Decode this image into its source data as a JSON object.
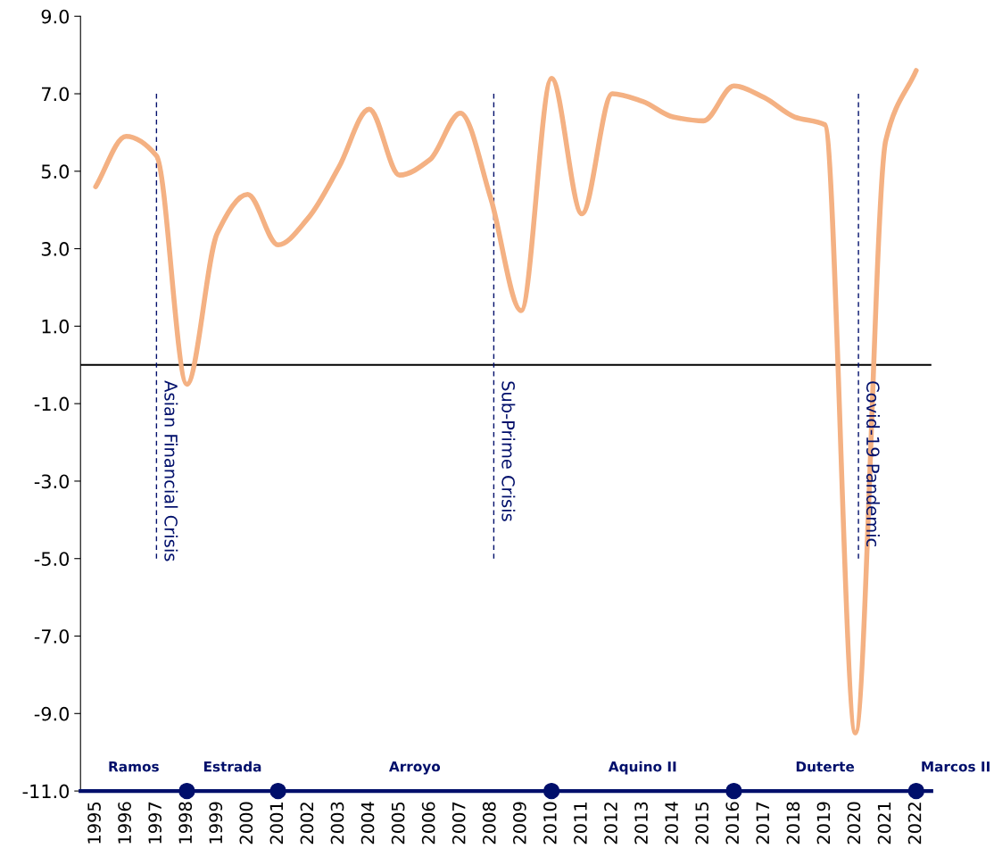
{
  "chart_data": {
    "type": "line",
    "x": [
      1995,
      1996,
      1997,
      1998,
      1999,
      2000,
      2001,
      2002,
      2003,
      2004,
      2005,
      2006,
      2007,
      2008,
      2009,
      2010,
      2011,
      2012,
      2013,
      2014,
      2015,
      2016,
      2017,
      2018,
      2019,
      2020,
      2021,
      2022
    ],
    "series": [
      {
        "color": "#f4b183",
        "values": [
          4.6,
          5.9,
          5.4,
          -0.5,
          3.4,
          4.4,
          3.1,
          3.8,
          5.1,
          6.6,
          4.9,
          5.3,
          6.5,
          4.3,
          1.4,
          7.4,
          3.9,
          7.0,
          6.8,
          6.4,
          6.3,
          7.2,
          6.9,
          6.4,
          6.2,
          -9.5,
          5.8,
          7.6
        ]
      },
      {
        "type": "scatter",
        "color": "#000f6b",
        "x": [
          1998,
          2001,
          2010,
          2016,
          2022
        ],
        "values": [
          -11,
          -11,
          -11,
          -11,
          -11
        ]
      }
    ],
    "xlim": [
      1994.5,
      2022.5
    ],
    "xticks": [
      1995,
      1996,
      1997,
      1998,
      1999,
      2000,
      2001,
      2002,
      2003,
      2004,
      2005,
      2006,
      2007,
      2008,
      2009,
      2010,
      2011,
      2012,
      2013,
      2014,
      2015,
      2016,
      2017,
      2018,
      2019,
      2020,
      2021,
      2022
    ],
    "ylim": [
      -11,
      9
    ],
    "yticks": [
      {
        "value": 9,
        "label": "9.0"
      },
      {
        "value": 7,
        "label": "7.0"
      },
      {
        "value": 5,
        "label": "5.0"
      },
      {
        "value": 3,
        "label": "3.0"
      },
      {
        "value": 1,
        "label": "1.0"
      },
      {
        "value": -1,
        "label": "-1.0"
      },
      {
        "value": -3,
        "label": "-3.0"
      },
      {
        "value": -5,
        "label": "-5.0"
      },
      {
        "value": -7,
        "label": "-7.0"
      },
      {
        "value": -9,
        "label": "-9.0"
      },
      {
        "value": -11,
        "label": "-11.0"
      }
    ],
    "ref_lines": [
      {
        "axis": "y",
        "value": 0,
        "color": "#000000",
        "line_style": "solid"
      },
      {
        "axis": "x",
        "value": 1997,
        "label": "Asian Financial Crisis",
        "color": "#000f6b",
        "line_style": "dashed"
      },
      {
        "axis": "x",
        "value": 2008.1,
        "label": "Sub-Prime Crisis",
        "color": "#000f6b",
        "line_style": "dashed"
      },
      {
        "axis": "x",
        "value": 2020.1,
        "label": "Covid-19 Pandemic",
        "color": "#000f6b",
        "line_style": "dashed"
      }
    ],
    "annotations": [
      "Ramos",
      "Estrada",
      "Arroyo",
      "Aquino II",
      "Duterte",
      "Marcos II"
    ],
    "grid": false,
    "legend": false
  }
}
